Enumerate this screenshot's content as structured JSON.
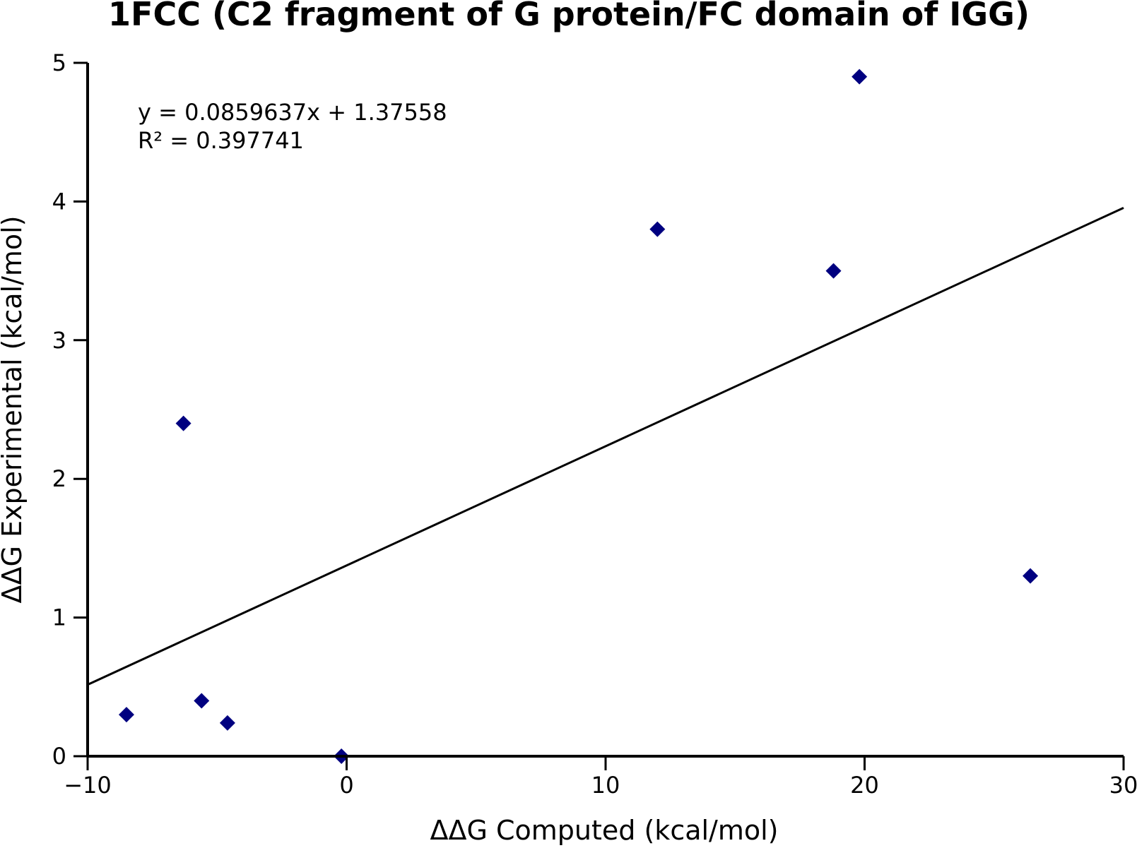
{
  "chart_data": {
    "type": "scatter",
    "title": "1FCC (C2 fragment of G protein/FC domain of IGG)",
    "xlabel": "ΔΔG Computed (kcal/mol)",
    "ylabel": "ΔΔG Experimental (kcal/mol)",
    "xlim": [
      -10,
      30
    ],
    "ylim": [
      0,
      5
    ],
    "xticks": [
      -10,
      0,
      10,
      20,
      30
    ],
    "yticks": [
      0,
      1,
      2,
      3,
      4,
      5
    ],
    "xtick_labels": [
      "−10",
      "0",
      "10",
      "20",
      "30"
    ],
    "ytick_labels": [
      "0",
      "1",
      "2",
      "3",
      "4",
      "5"
    ],
    "grid": false,
    "marker_color": "#000080",
    "points": [
      {
        "x": -8.5,
        "y": 0.3
      },
      {
        "x": -6.3,
        "y": 2.4
      },
      {
        "x": -5.6,
        "y": 0.4
      },
      {
        "x": -4.6,
        "y": 0.24
      },
      {
        "x": -0.2,
        "y": 0.0
      },
      {
        "x": 12.0,
        "y": 3.8
      },
      {
        "x": 18.8,
        "y": 3.5
      },
      {
        "x": 19.8,
        "y": 4.9
      },
      {
        "x": 26.4,
        "y": 1.3
      }
    ],
    "fit": {
      "slope": 0.0859637,
      "intercept": 1.37558,
      "equation_label": "y = 0.0859637x + 1.37558",
      "r2_label": "R² = 0.397741"
    }
  }
}
